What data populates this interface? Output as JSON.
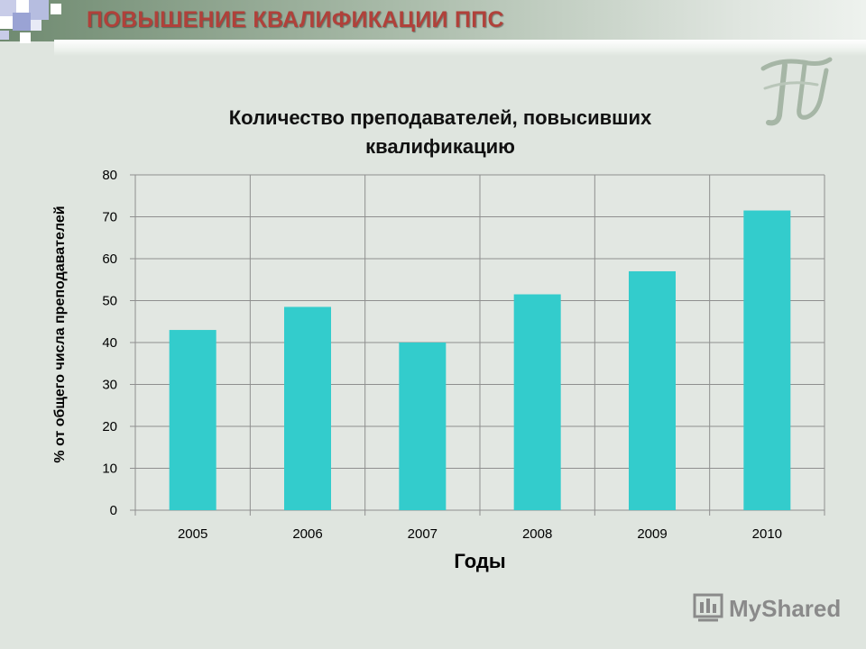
{
  "slide": {
    "title": "ПОВЫШЕНИЕ КВАЛИФИКАЦИИ ППС",
    "watermark": "MyShared",
    "colors": {
      "accent_title": "#b0413a",
      "bar": "#33cccc",
      "background": "#dfe5df"
    },
    "logo_icon": "university-monogram-logo"
  },
  "chart_data": {
    "type": "bar",
    "title_lines": [
      "Количество преподавателей, повысивших",
      "квалификацию"
    ],
    "categories": [
      "2005",
      "2006",
      "2007",
      "2008",
      "2009",
      "2010"
    ],
    "values": [
      43,
      48.5,
      40,
      51.5,
      57,
      71.5
    ],
    "xlabel": "Годы",
    "ylabel": "% от общего числа преподавателей",
    "ylim": [
      0,
      80
    ],
    "yticks": [
      0,
      10,
      20,
      30,
      40,
      50,
      60,
      70,
      80
    ],
    "grid": true,
    "legend": "none"
  }
}
